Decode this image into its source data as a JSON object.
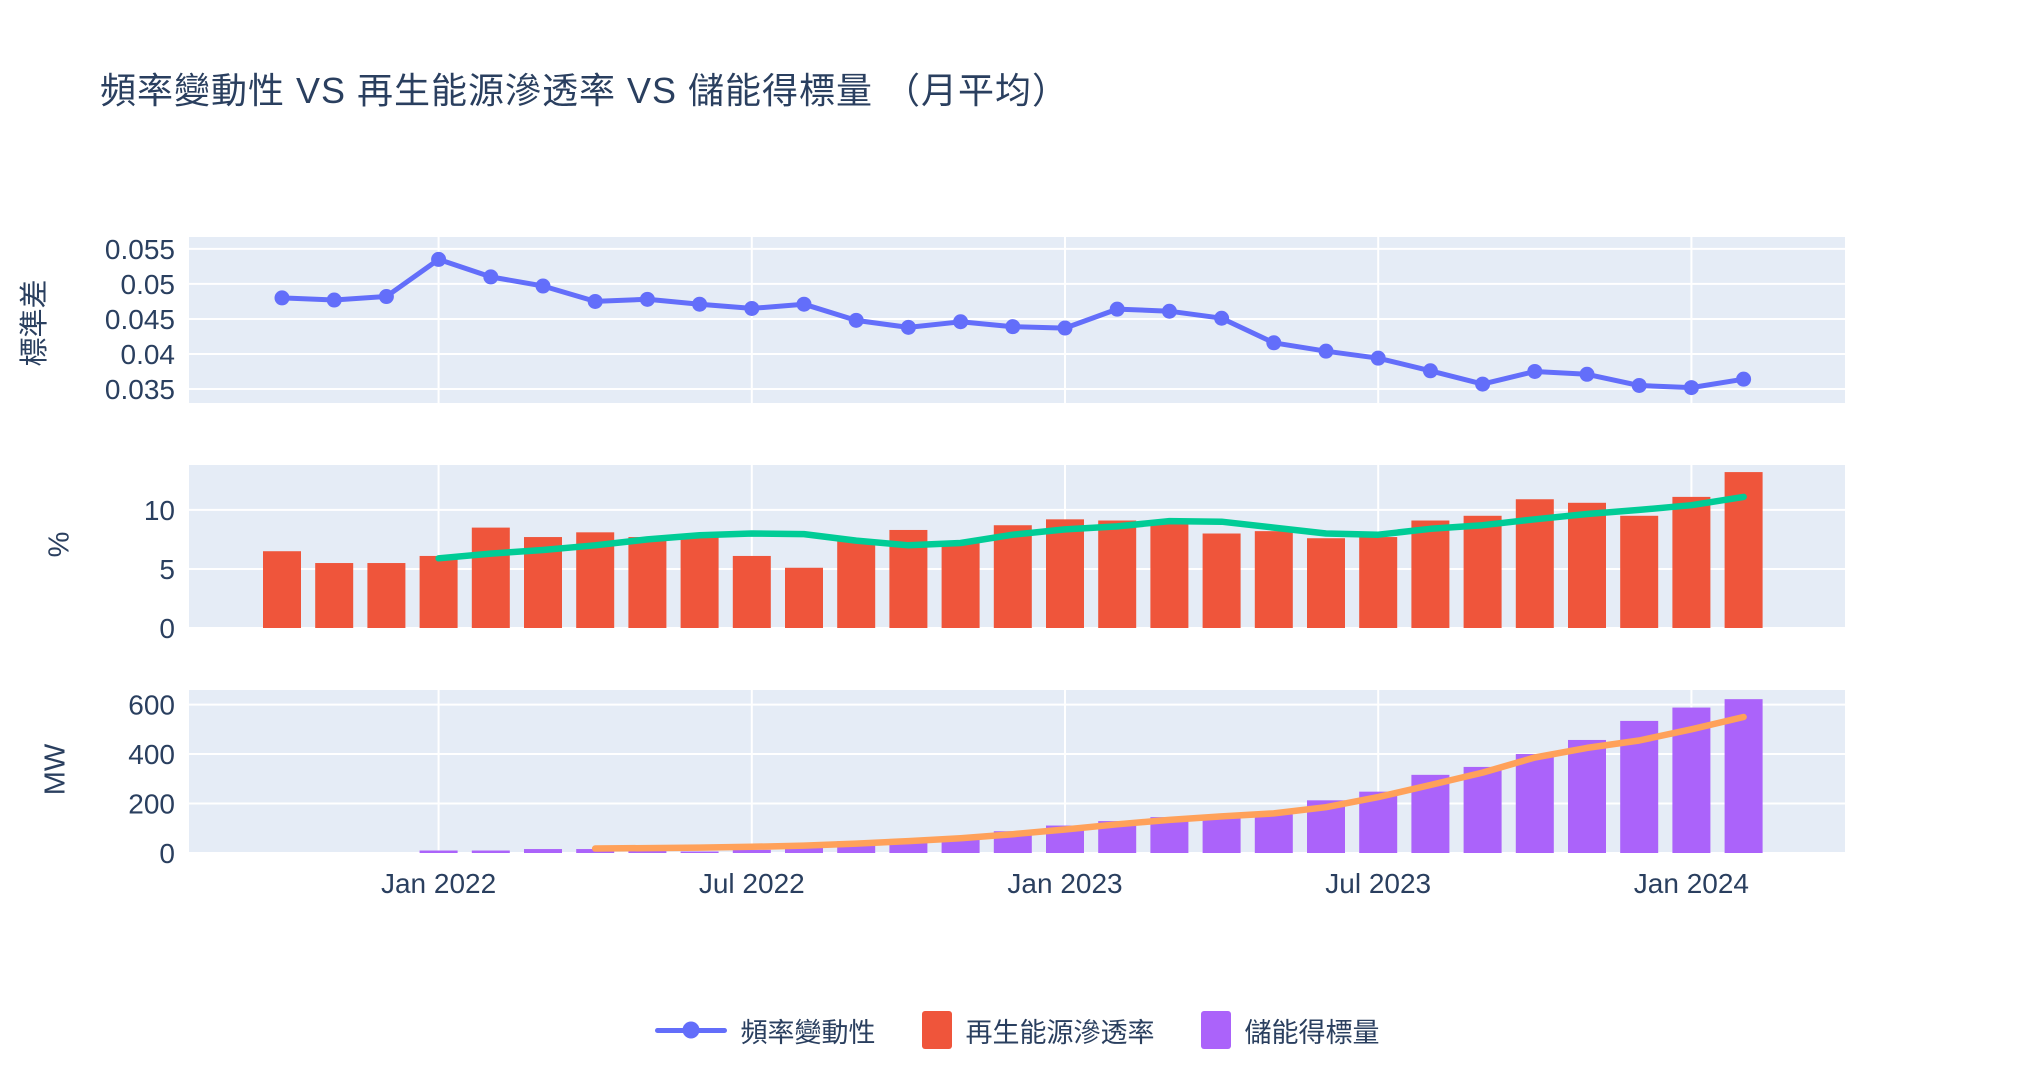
{
  "title": "頻率變動性 VS 再生能源滲透率 VS 儲能得標量 （月平均）",
  "colors": {
    "text": "#2a3f5f",
    "plot_bg": "#e5ecf6",
    "grid": "#ffffff",
    "freq_line": "#636efa",
    "renewable_bar": "#ef553b",
    "renewable_trend": "#00cc96",
    "storage_bar": "#ab63fa",
    "storage_trend": "#ffa15a"
  },
  "xaxis": {
    "tick_labels": [
      "Jan 2022",
      "Jul 2022",
      "Jan 2023",
      "Jul 2023",
      "Jan 2024"
    ],
    "tick_month_indexes": [
      3,
      9,
      15,
      21,
      27
    ]
  },
  "legend": {
    "items": [
      {
        "label": "頻率變動性",
        "marker": "line",
        "color": "#636efa"
      },
      {
        "label": "再生能源滲透率",
        "marker": "square",
        "color": "#ef553b"
      },
      {
        "label": "儲能得標量",
        "marker": "square",
        "color": "#ab63fa"
      }
    ]
  },
  "chart_data": [
    {
      "type": "line",
      "name": "頻率變動性",
      "ylabel": "標準差",
      "x": [
        "2021-10",
        "2021-11",
        "2021-12",
        "2022-01",
        "2022-02",
        "2022-03",
        "2022-04",
        "2022-05",
        "2022-06",
        "2022-07",
        "2022-08",
        "2022-09",
        "2022-10",
        "2022-11",
        "2022-12",
        "2023-01",
        "2023-02",
        "2023-03",
        "2023-04",
        "2023-05",
        "2023-06",
        "2023-07",
        "2023-08",
        "2023-09",
        "2023-10",
        "2023-11",
        "2023-12",
        "2024-01",
        "2024-02"
      ],
      "y": [
        0.048,
        0.0477,
        0.0482,
        0.0535,
        0.051,
        0.0497,
        0.0475,
        0.0478,
        0.0471,
        0.0465,
        0.0471,
        0.0448,
        0.0438,
        0.0446,
        0.0439,
        0.0437,
        0.0464,
        0.0461,
        0.0451,
        0.0416,
        0.0404,
        0.0394,
        0.0376,
        0.0357,
        0.0375,
        0.0371,
        0.0355,
        0.0352,
        0.0364
      ],
      "yticks": [
        0.055,
        0.05,
        0.045,
        0.04,
        0.035
      ],
      "ylim": [
        0.033,
        0.0567
      ],
      "grid": true,
      "legend_position": "bottom"
    },
    {
      "type": "bar",
      "name": "再生能源滲透率",
      "ylabel": "%",
      "x": [
        "2021-10",
        "2021-11",
        "2021-12",
        "2022-01",
        "2022-02",
        "2022-03",
        "2022-04",
        "2022-05",
        "2022-06",
        "2022-07",
        "2022-08",
        "2022-09",
        "2022-10",
        "2022-11",
        "2022-12",
        "2023-01",
        "2023-02",
        "2023-03",
        "2023-04",
        "2023-05",
        "2023-06",
        "2023-07",
        "2023-08",
        "2023-09",
        "2023-10",
        "2023-11",
        "2023-12",
        "2024-01",
        "2024-02"
      ],
      "values": [
        6.5,
        5.5,
        5.5,
        6.1,
        8.5,
        7.7,
        8.1,
        7.7,
        7.8,
        6.1,
        5.1,
        7.4,
        8.3,
        7.2,
        8.7,
        9.2,
        9.1,
        8.8,
        8.0,
        8.2,
        7.6,
        7.7,
        9.1,
        9.5,
        10.9,
        10.6,
        9.5,
        11.1,
        13.2
      ],
      "yticks": [
        0,
        5,
        10
      ],
      "ylim": [
        0,
        13.8
      ],
      "grid": true,
      "trend_line": {
        "start_index": 3,
        "values": [
          5.9,
          6.3,
          6.6,
          7.0,
          7.5,
          7.85,
          8.0,
          7.95,
          7.4,
          7.0,
          7.2,
          7.9,
          8.35,
          8.6,
          9.05,
          9.0,
          8.5,
          8.0,
          7.9,
          8.4,
          8.7,
          9.2,
          9.65,
          10.0,
          10.4,
          11.1
        ],
        "color": "#00cc96"
      }
    },
    {
      "type": "bar",
      "name": "儲能得標量",
      "ylabel": "MW",
      "x": [
        "2021-10",
        "2021-11",
        "2021-12",
        "2022-01",
        "2022-02",
        "2022-03",
        "2022-04",
        "2022-05",
        "2022-06",
        "2022-07",
        "2022-08",
        "2022-09",
        "2022-10",
        "2022-11",
        "2022-12",
        "2023-01",
        "2023-02",
        "2023-03",
        "2023-04",
        "2023-05",
        "2023-06",
        "2023-07",
        "2023-08",
        "2023-09",
        "2023-10",
        "2023-11",
        "2023-12",
        "2024-01",
        "2024-02"
      ],
      "values": [
        0,
        0,
        0,
        10,
        10,
        16,
        16,
        10,
        6,
        13,
        40,
        48,
        53,
        57,
        88,
        111,
        129,
        145,
        152,
        156,
        213,
        248,
        316,
        348,
        400,
        457,
        534,
        588,
        622
      ],
      "yticks": [
        0,
        200,
        400,
        600
      ],
      "ylim": [
        0,
        659
      ],
      "grid": true,
      "trend_line": {
        "start_index": 6,
        "values": [
          18,
          20,
          22,
          25,
          30,
          38,
          48,
          60,
          76,
          95,
          116,
          134,
          148,
          160,
          185,
          226,
          275,
          325,
          386,
          425,
          455,
          500,
          550
        ],
        "color": "#ffa15a"
      }
    }
  ]
}
